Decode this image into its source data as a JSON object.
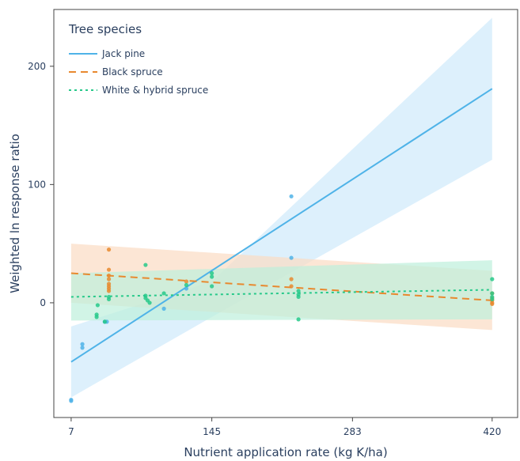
{
  "chart_data": {
    "type": "scatter",
    "xlabel": "Nutrient application rate (kg K/ha)",
    "ylabel": "Weighted ln response ratio",
    "xlim": [
      -10,
      445
    ],
    "ylim": [
      -97,
      248
    ],
    "x_ticks": [
      7,
      145,
      283,
      420
    ],
    "y_ticks": [
      0,
      100,
      200
    ],
    "grid": false,
    "legend": {
      "title": "Tree species",
      "placement": "top-left",
      "entries": [
        "Jack pine",
        "Black spruce",
        "White & hybrid spruce"
      ]
    },
    "series": [
      {
        "name": "Jack pine",
        "color": "#4fb3e8",
        "band_color": "#cfe9fb",
        "line_style": "solid",
        "line": [
          [
            7,
            -50
          ],
          [
            420,
            181
          ]
        ],
        "ci_upper": [
          [
            7,
            -20
          ],
          [
            145,
            18
          ],
          [
            420,
            241
          ]
        ],
        "ci_lower": [
          [
            7,
            -80
          ],
          [
            145,
            -12
          ],
          [
            420,
            121
          ]
        ],
        "points": [
          [
            7,
            -82
          ],
          [
            7,
            -83
          ],
          [
            18,
            -35
          ],
          [
            18,
            -38
          ],
          [
            40,
            -16
          ],
          [
            42,
            -16
          ],
          [
            98,
            -5
          ],
          [
            120,
            12
          ],
          [
            223,
            90
          ],
          [
            223,
            38
          ]
        ]
      },
      {
        "name": "Black spruce",
        "color": "#e8892f",
        "band_color": "#fbdcc3",
        "line_style": "dashed",
        "line": [
          [
            7,
            25
          ],
          [
            420,
            2
          ]
        ],
        "ci_upper": [
          [
            7,
            50
          ],
          [
            420,
            27
          ]
        ],
        "ci_lower": [
          [
            7,
            0
          ],
          [
            420,
            -23
          ]
        ],
        "points": [
          [
            44,
            45
          ],
          [
            44,
            28
          ],
          [
            44,
            23
          ],
          [
            44,
            20
          ],
          [
            44,
            16
          ],
          [
            44,
            14
          ],
          [
            44,
            12
          ],
          [
            44,
            10
          ],
          [
            120,
            18
          ],
          [
            223,
            20
          ],
          [
            223,
            14
          ],
          [
            420,
            8
          ],
          [
            420,
            4
          ],
          [
            420,
            2
          ],
          [
            420,
            0
          ],
          [
            420,
            -1
          ]
        ]
      },
      {
        "name": "White & hybrid spruce",
        "color": "#27c98a",
        "band_color": "#bdefdc",
        "line_style": "dotted",
        "line": [
          [
            7,
            5
          ],
          [
            420,
            11
          ]
        ],
        "ci_upper": [
          [
            7,
            25
          ],
          [
            420,
            36
          ]
        ],
        "ci_lower": [
          [
            7,
            -15
          ],
          [
            420,
            -14
          ]
        ],
        "points": [
          [
            44,
            5
          ],
          [
            44,
            3
          ],
          [
            33,
            -2
          ],
          [
            32,
            -10
          ],
          [
            32,
            -12
          ],
          [
            40,
            -16
          ],
          [
            80,
            32
          ],
          [
            80,
            6
          ],
          [
            80,
            4
          ],
          [
            82,
            2
          ],
          [
            84,
            0
          ],
          [
            98,
            8
          ],
          [
            120,
            15
          ],
          [
            145,
            25
          ],
          [
            145,
            22
          ],
          [
            145,
            14
          ],
          [
            230,
            10
          ],
          [
            230,
            7
          ],
          [
            230,
            5
          ],
          [
            230,
            -14
          ],
          [
            420,
            20
          ],
          [
            420,
            8
          ],
          [
            420,
            5
          ],
          [
            420,
            3
          ]
        ]
      }
    ]
  }
}
